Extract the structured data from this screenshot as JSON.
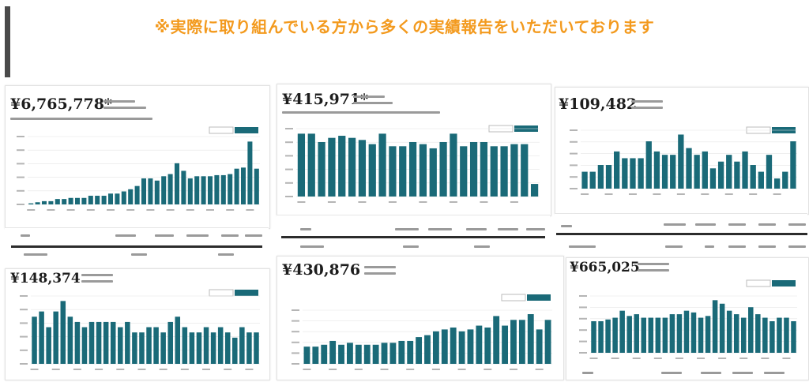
{
  "headline": "※実際に取り組んでいる方から多くの実績報告をいただいております",
  "colors": {
    "headline": "#f39a1e",
    "bar": "#1a6a78",
    "accent_bar": "#4a4a4a"
  },
  "chart_data": [
    {
      "type": "bar",
      "amount": "¥6,765,778*",
      "values": [
        1,
        2,
        3,
        3,
        5,
        5,
        6,
        6,
        6,
        8,
        8,
        8,
        10,
        10,
        12,
        14,
        17,
        24,
        24,
        22,
        26,
        28,
        38,
        31,
        24,
        26,
        26,
        26,
        27,
        27,
        28,
        33,
        34,
        58,
        33
      ]
    },
    {
      "type": "bar",
      "amount": "¥415,971*",
      "values": [
        30,
        30,
        26,
        28,
        29,
        28,
        27,
        25,
        30,
        24,
        24,
        26,
        25,
        23,
        26,
        30,
        24,
        26,
        26,
        24,
        24,
        25,
        25,
        6
      ]
    },
    {
      "type": "bar",
      "amount": "¥109,482",
      "values": [
        10,
        10,
        14,
        14,
        22,
        18,
        18,
        18,
        28,
        22,
        20,
        20,
        32,
        24,
        20,
        22,
        12,
        16,
        20,
        16,
        22,
        14,
        10,
        20,
        6,
        10,
        28
      ]
    },
    {
      "type": "bar",
      "amount": "¥148,374",
      "values": [
        18,
        20,
        14,
        20,
        24,
        18,
        16,
        14,
        16,
        16,
        16,
        16,
        14,
        16,
        12,
        12,
        14,
        14,
        12,
        16,
        18,
        14,
        12,
        12,
        14,
        12,
        14,
        12,
        10,
        14,
        12,
        12
      ]
    },
    {
      "type": "bar",
      "amount": "¥430,876",
      "values": [
        9,
        9,
        10,
        12,
        10,
        11,
        10,
        10,
        10,
        11,
        11,
        12,
        12,
        14,
        15,
        17,
        18,
        19,
        17,
        18,
        20,
        19,
        25,
        20,
        23,
        23,
        26,
        18,
        23
      ]
    },
    {
      "type": "bar",
      "amount": "¥665,025",
      "values": [
        18,
        18,
        19,
        20,
        24,
        21,
        22,
        20,
        20,
        20,
        20,
        22,
        22,
        24,
        23,
        20,
        21,
        30,
        28,
        24,
        22,
        20,
        26,
        22,
        20,
        18,
        20,
        20,
        18
      ]
    }
  ]
}
